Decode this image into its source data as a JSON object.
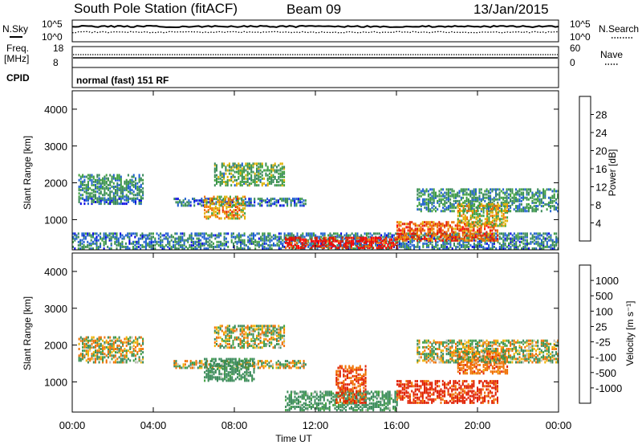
{
  "header": {
    "station": "South Pole Station (fitACF)",
    "beam": "Beam 09",
    "date": "13/Jan/2015"
  },
  "top_panels": {
    "nsky_label": "N.Sky",
    "nsearch_label": "N.Search",
    "noise_ticks": [
      "10^5",
      "10^0"
    ],
    "freq_label": "Freq.",
    "freq_unit": "[MHz]",
    "freq_ticks": [
      "18",
      "8"
    ],
    "nave_label": "Nave",
    "nave_ticks": [
      "60",
      "0"
    ],
    "cpid_label": "CPID",
    "cpid_value": "normal (fast) 151 RF"
  },
  "axes": {
    "ylabel": "Slant Range [km]",
    "y_ticks": [
      "1000",
      "2000",
      "3000",
      "4000"
    ],
    "x_ticks": [
      "00:00",
      "04:00",
      "08:00",
      "12:00",
      "16:00",
      "20:00",
      "00:00"
    ],
    "xlabel": "Time UT"
  },
  "colorbars": {
    "power": {
      "label": "Power [dB]",
      "ticks": [
        "4",
        "8",
        "12",
        "16",
        "20",
        "24",
        "28"
      ],
      "colors": [
        "#0000e0",
        "#2060d0",
        "#3a8a5a",
        "#40a040",
        "#e0b000",
        "#f07000",
        "#e02000",
        "#ff0000"
      ]
    },
    "velocity": {
      "label": "Velocity [m s⁻¹]",
      "ticks": [
        "1000",
        "500",
        "100",
        "25",
        "-25",
        "-100",
        "-500",
        "-1000"
      ],
      "colors": [
        "#2040c0",
        "#2060d0",
        "#3a8a5a",
        "#40a040",
        "#c0c0b8",
        "#f0b000",
        "#f07000",
        "#e02000",
        "#ff0000"
      ]
    }
  },
  "chart_data": [
    {
      "type": "heatmap",
      "title": "Power",
      "xlabel": "Time UT",
      "ylabel": "Slant Range [km]",
      "xlim": [
        0,
        24
      ],
      "ylim": [
        180,
        4500
      ],
      "x_unit": "hours UT",
      "colorbar_label": "Power [dB]",
      "colorbar_range": [
        0,
        30
      ],
      "echo_regions": [
        {
          "t0": 0.0,
          "t1": 24.0,
          "r0": 180,
          "r1": 600,
          "value": 8
        },
        {
          "t0": 0.3,
          "t1": 3.5,
          "r0": 1500,
          "r1": 2200,
          "value": 10
        },
        {
          "t0": 0.3,
          "t1": 3.5,
          "r0": 1400,
          "r1": 1550,
          "value": 6
        },
        {
          "t0": 5.0,
          "t1": 11.5,
          "r0": 1350,
          "r1": 1550,
          "value": 7
        },
        {
          "t0": 6.5,
          "t1": 8.5,
          "r0": 1000,
          "r1": 1600,
          "value": 18
        },
        {
          "t0": 7.0,
          "t1": 10.5,
          "r0": 1900,
          "r1": 2500,
          "value": 12
        },
        {
          "t0": 10.5,
          "t1": 16.0,
          "r0": 200,
          "r1": 500,
          "value": 26
        },
        {
          "t0": 16.0,
          "t1": 21.0,
          "r0": 400,
          "r1": 900,
          "value": 22
        },
        {
          "t0": 17.0,
          "t1": 24.0,
          "r0": 1200,
          "r1": 1800,
          "value": 10
        },
        {
          "t0": 19.0,
          "t1": 21.5,
          "r0": 800,
          "r1": 1400,
          "value": 16
        }
      ]
    },
    {
      "type": "heatmap",
      "title": "Velocity",
      "xlabel": "Time UT",
      "ylabel": "Slant Range [km]",
      "xlim": [
        0,
        24
      ],
      "ylim": [
        180,
        4500
      ],
      "x_unit": "hours UT",
      "colorbar_label": "Velocity [m s⁻¹]",
      "colorbar_range": [
        -1000,
        1000
      ],
      "echo_regions": [
        {
          "t0": 0.3,
          "t1": 3.5,
          "r0": 1500,
          "r1": 2200,
          "value": 0
        },
        {
          "t0": 5.0,
          "t1": 11.5,
          "r0": 1350,
          "r1": 1550,
          "value": 0
        },
        {
          "t0": 6.5,
          "t1": 9.0,
          "r0": 1000,
          "r1": 1600,
          "value": 150
        },
        {
          "t0": 7.0,
          "t1": 10.5,
          "r0": 1900,
          "r1": 2500,
          "value": 10
        },
        {
          "t0": 10.5,
          "t1": 16.0,
          "r0": 200,
          "r1": 700,
          "value": 150
        },
        {
          "t0": 13.0,
          "t1": 14.5,
          "r0": 400,
          "r1": 1400,
          "value": -300
        },
        {
          "t0": 16.0,
          "t1": 21.0,
          "r0": 400,
          "r1": 1000,
          "value": -400
        },
        {
          "t0": 19.0,
          "t1": 21.5,
          "r0": 1200,
          "r1": 1800,
          "value": -200
        },
        {
          "t0": 17.0,
          "t1": 24.0,
          "r0": 1500,
          "r1": 2100,
          "value": 10
        }
      ]
    }
  ]
}
